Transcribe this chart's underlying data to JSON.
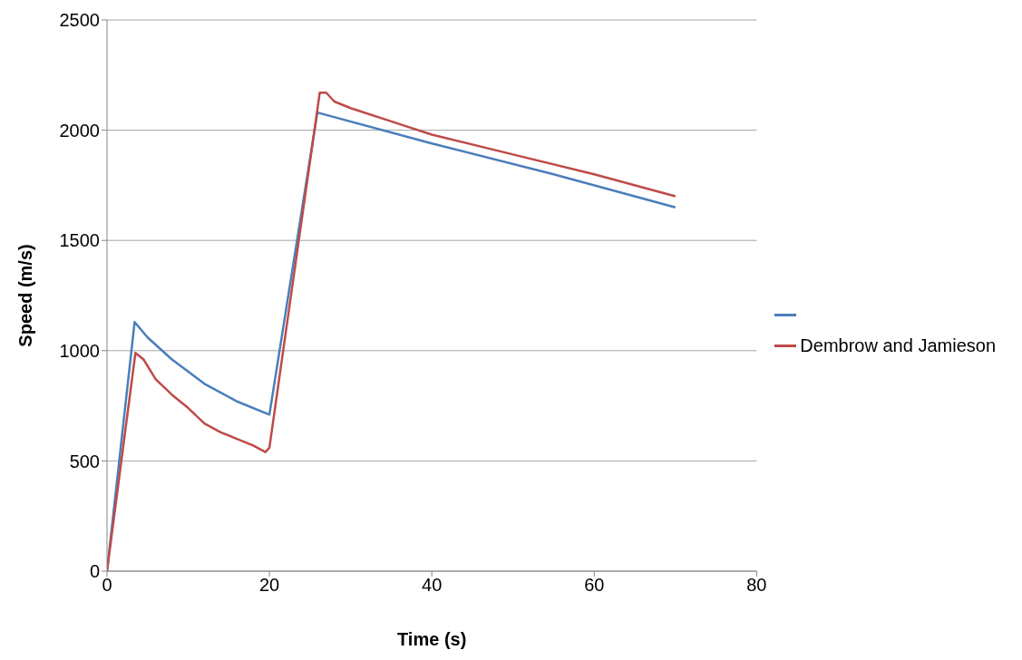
{
  "chart_data": {
    "type": "line",
    "xlabel": "Time (s)",
    "ylabel": "Speed (m/s)",
    "series": [
      {
        "color": "#4a7ebb",
        "x": [
          0,
          3.4,
          5,
          8,
          12,
          16,
          20,
          25.9,
          40,
          55,
          70
        ],
        "values": [
          0,
          1130,
          1060,
          960,
          850,
          770,
          710,
          2080,
          1940,
          1800,
          1650
        ]
      },
      {
        "name": "Dembrow and Jamieson",
        "color": "#be4b48",
        "x": [
          0,
          3.5,
          4.5,
          6,
          8,
          10,
          12,
          14,
          16,
          18,
          19.5,
          20,
          26.2,
          27,
          28,
          30,
          35,
          40,
          50,
          60,
          70
        ],
        "values": [
          0,
          990,
          960,
          870,
          800,
          740,
          670,
          630,
          600,
          570,
          540,
          560,
          2170,
          2170,
          2130,
          2100,
          2040,
          1980,
          1890,
          1800,
          1700
        ]
      }
    ],
    "xlim": [
      0,
      80
    ],
    "xticks": [
      0,
      20,
      40,
      60,
      80
    ],
    "ylim": [
      0,
      2500
    ],
    "yticks": [
      0,
      500,
      1000,
      1500,
      2000,
      2500
    ],
    "grid": "y",
    "legend": "right",
    "marker": "none",
    "line_style": "solid"
  }
}
